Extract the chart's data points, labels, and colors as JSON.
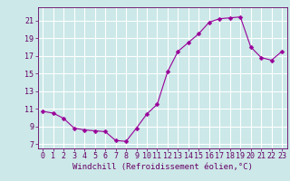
{
  "x": [
    0,
    1,
    2,
    3,
    4,
    5,
    6,
    7,
    8,
    9,
    10,
    11,
    12,
    13,
    14,
    15,
    16,
    17,
    18,
    19,
    20,
    21,
    22,
    23
  ],
  "y": [
    10.7,
    10.5,
    9.9,
    8.8,
    8.6,
    8.5,
    8.4,
    7.4,
    7.3,
    8.8,
    10.4,
    11.5,
    15.2,
    17.5,
    18.5,
    19.5,
    20.8,
    21.2,
    21.3,
    21.4,
    18.0,
    16.8,
    16.5,
    17.5
  ],
  "line_color": "#990099",
  "marker": "D",
  "marker_size": 2.5,
  "bg_color": "#cce8e8",
  "grid_color": "#ffffff",
  "axis_color": "#660066",
  "xlabel": "Windchill (Refroidissement éolien,°C)",
  "xlabel_fontsize": 6.5,
  "tick_fontsize": 6.0,
  "ylim": [
    6.5,
    22.5
  ],
  "xlim": [
    -0.5,
    23.5
  ],
  "yticks": [
    7,
    9,
    11,
    13,
    15,
    17,
    19,
    21
  ],
  "xticks": [
    0,
    1,
    2,
    3,
    4,
    5,
    6,
    7,
    8,
    9,
    10,
    11,
    12,
    13,
    14,
    15,
    16,
    17,
    18,
    19,
    20,
    21,
    22,
    23
  ]
}
